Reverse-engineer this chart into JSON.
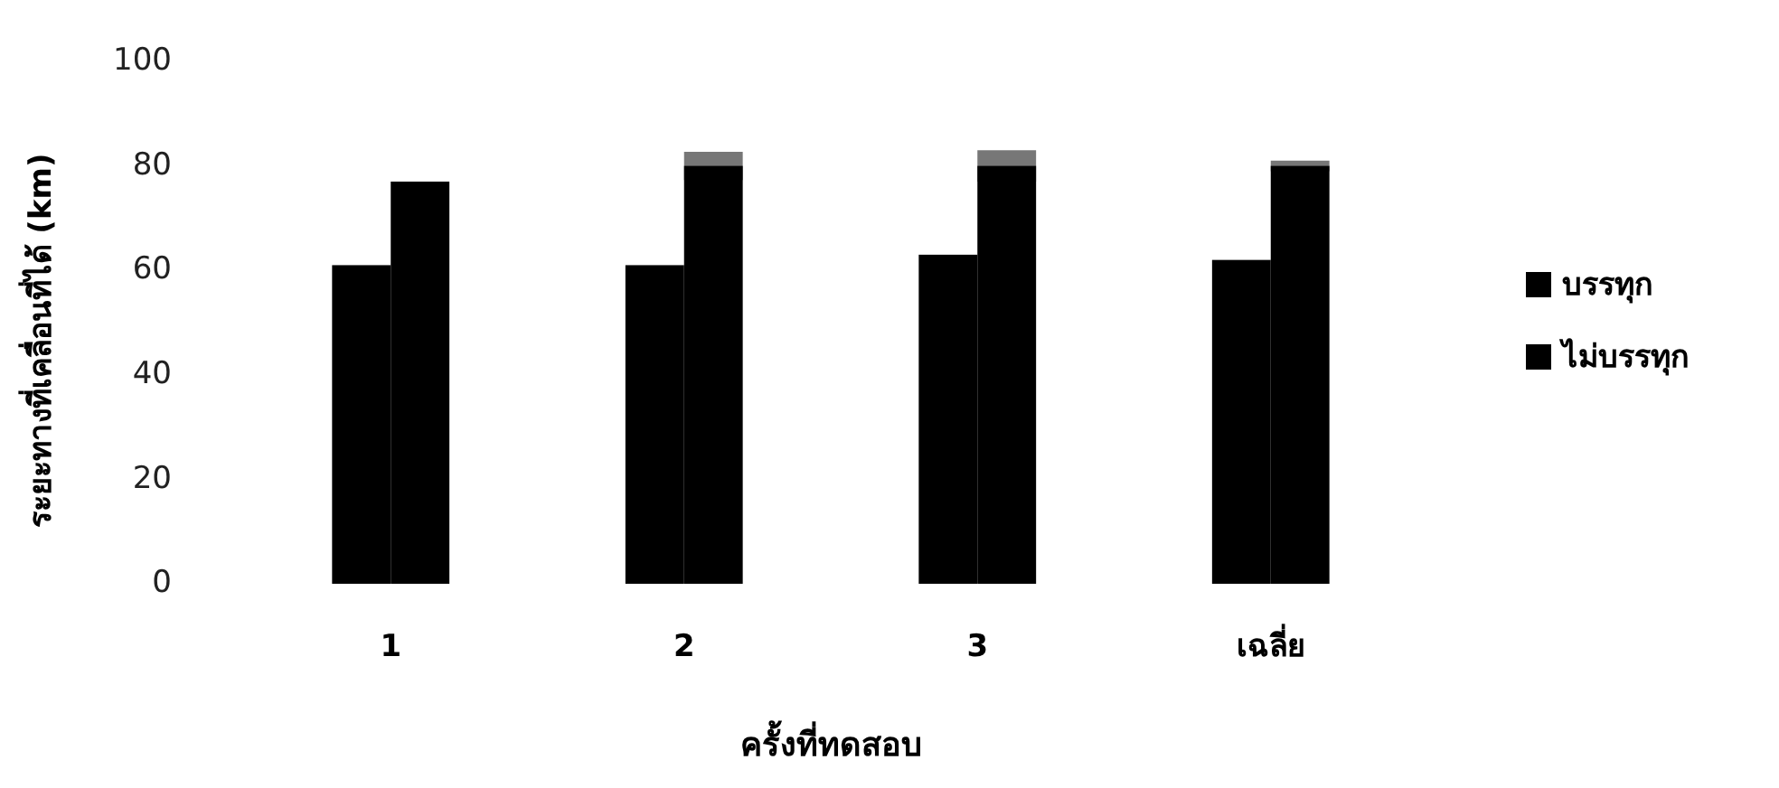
{
  "chart_data": {
    "type": "bar",
    "xlabel": "ครั้งที่ทดสอบ",
    "ylabel": "ระยะทางที่เคลื่อนที่ได้ (km)",
    "categories": [
      "1",
      "2",
      "3",
      "เฉลี่ย"
    ],
    "series": [
      {
        "name": "บรรทุก",
        "color": "#000000",
        "values": [
          61,
          61,
          63,
          62
        ]
      },
      {
        "name": "ไม่บรรทุก",
        "color": "#000000",
        "values": [
          77,
          80,
          80,
          80
        ],
        "errors": [
          null,
          2.7,
          3,
          1
        ]
      }
    ],
    "ylim": [
      0,
      100
    ],
    "yticks": [
      0,
      20,
      40,
      60,
      80,
      100
    ],
    "grid": false,
    "legend": "right"
  }
}
